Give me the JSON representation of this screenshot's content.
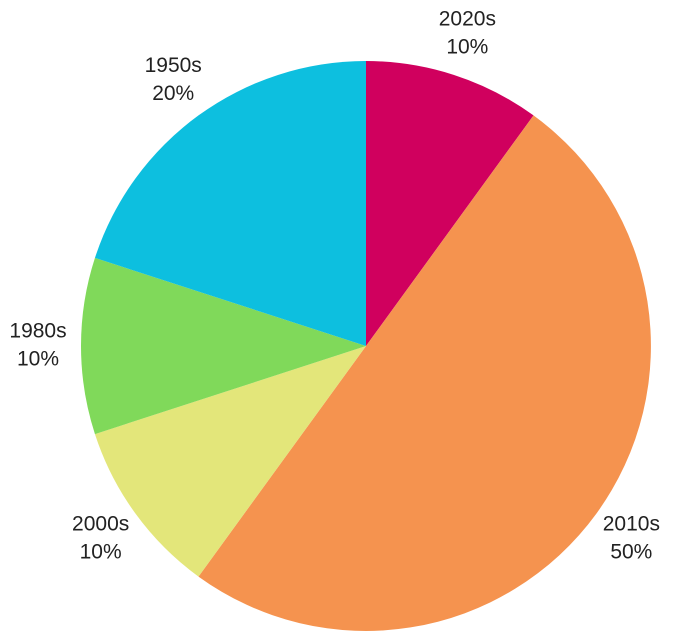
{
  "chart_data": {
    "type": "pie",
    "categories": [
      "2020s",
      "2010s",
      "2000s",
      "1980s",
      "1950s"
    ],
    "values": [
      10,
      50,
      10,
      10,
      20
    ],
    "value_labels": [
      "10%",
      "50%",
      "10%",
      "10%",
      "20%"
    ],
    "colors": [
      "#d0005e",
      "#f5934f",
      "#e3e67a",
      "#80d95a",
      "#0dbfdf"
    ]
  }
}
